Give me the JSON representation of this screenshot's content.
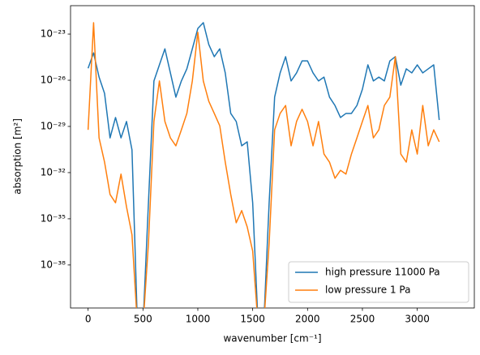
{
  "chart_data": {
    "type": "line",
    "xlabel": "wavenumber [cm⁻¹]",
    "ylabel": "absorption [m²]",
    "x": [
      0,
      50,
      100,
      150,
      200,
      250,
      300,
      350,
      400,
      450,
      500,
      550,
      600,
      650,
      700,
      750,
      800,
      850,
      900,
      950,
      1000,
      1050,
      1100,
      1150,
      1200,
      1250,
      1300,
      1350,
      1400,
      1450,
      1500,
      1550,
      1600,
      1650,
      1700,
      1750,
      1800,
      1850,
      1900,
      1950,
      2000,
      2050,
      2100,
      2150,
      2200,
      2250,
      2300,
      2350,
      2400,
      2450,
      2500,
      2550,
      2600,
      2650,
      2700,
      2750,
      2800,
      2850,
      2900,
      2950,
      3000,
      3050,
      3100,
      3150,
      3200
    ],
    "series": [
      {
        "name": "high pressure 11000 Pa",
        "color": "#1f77b4",
        "values": [
          6e-26,
          6e-25,
          1.6e-26,
          1.4e-27,
          1.8e-30,
          3.8e-29,
          1.8e-30,
          2.1e-29,
          3e-31,
          1e-42,
          1e-42,
          1.1e-34,
          9e-27,
          1e-25,
          1.1e-24,
          3e-26,
          8e-28,
          9e-27,
          5.5e-26,
          1.1e-24,
          2.3e-23,
          5.5e-23,
          2.1e-24,
          3.4e-25,
          1.1e-24,
          3e-26,
          7e-29,
          2.1e-29,
          5.5e-31,
          1e-30,
          1.1e-34,
          1e-42,
          1e-42,
          1.1e-34,
          8e-28,
          3e-26,
          3.4e-25,
          9e-27,
          3e-26,
          1.8e-25,
          1.8e-25,
          3e-26,
          9e-27,
          1.6e-26,
          8e-28,
          2.3e-28,
          3.8e-29,
          7e-29,
          7e-29,
          2.3e-28,
          2.6e-27,
          1e-25,
          9e-27,
          1.6e-26,
          9e-27,
          1.8e-25,
          3.4e-25,
          4.8e-27,
          5.5e-26,
          3e-26,
          1e-25,
          3e-26,
          5.5e-26,
          1e-25,
          2.6e-29
        ]
      },
      {
        "name": "low pressure 1 Pa",
        "color": "#ff7f0e",
        "values": [
          6e-30,
          5.5e-23,
          1.8e-30,
          4.8e-32,
          3.8e-34,
          1.1e-34,
          8e-33,
          6e-35,
          9e-37,
          1e-42,
          1e-42,
          2.6e-37,
          2.1e-29,
          9e-27,
          2.1e-29,
          1.8e-30,
          5.5e-31,
          6e-30,
          7e-29,
          9e-27,
          1.3e-23,
          9e-27,
          4.3e-28,
          7e-29,
          1.1e-29,
          4.8e-32,
          3.8e-34,
          5.5e-36,
          3.4e-35,
          3e-36,
          8e-38,
          1e-42,
          1e-42,
          2.6e-37,
          6e-30,
          7e-29,
          2.3e-28,
          5.5e-31,
          2.1e-29,
          1.3e-28,
          2.1e-29,
          5.5e-31,
          2.1e-29,
          1.6e-31,
          4.8e-32,
          4.3e-33,
          1.4e-32,
          8e-33,
          1.6e-31,
          1.8e-30,
          2.1e-29,
          2.3e-28,
          1.8e-30,
          6e-30,
          2.3e-28,
          8e-28,
          3.4e-25,
          1.6e-31,
          4.8e-32,
          6e-30,
          1.6e-31,
          2.3e-28,
          5.5e-31,
          6e-30,
          1e-30
        ]
      }
    ],
    "xlim": [
      -160,
      3520
    ],
    "xticks": [
      0,
      500,
      1000,
      1500,
      2000,
      2500,
      3000
    ],
    "ylim": [
      1.6e-41,
      7e-22
    ],
    "yscale": "log",
    "yticks": [
      {
        "value": 1e-38,
        "label": "10⁻³⁸"
      },
      {
        "value": 1e-35,
        "label": "10⁻³⁵"
      },
      {
        "value": 1e-32,
        "label": "10⁻³²"
      },
      {
        "value": 1e-29,
        "label": "10⁻²⁹"
      },
      {
        "value": 1e-26,
        "label": "10⁻²⁶"
      },
      {
        "value": 1e-23,
        "label": "10⁻²³"
      }
    ],
    "legend": "lower right"
  }
}
